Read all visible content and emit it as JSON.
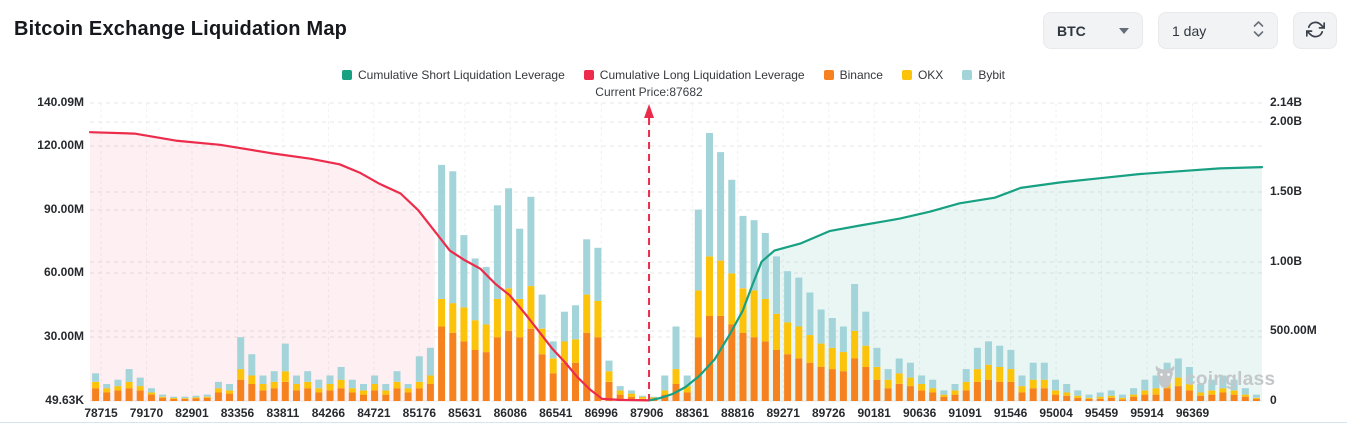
{
  "page": {
    "title": "Bitcoin Exchange Liquidation Map"
  },
  "controls": {
    "symbol": "BTC",
    "interval": "1 day",
    "refresh_icon": "refresh-icon",
    "symbol_caret_icon": "chevron-down-icon",
    "interval_spinner_icon": "up-down-chevrons-icon"
  },
  "legend": [
    {
      "label": "Cumulative Short Liquidation Leverage",
      "color": "#17a182"
    },
    {
      "label": "Cumulative Long Liquidation Leverage",
      "color": "#ec2c4a"
    },
    {
      "label": "Binance",
      "color": "#f6821f"
    },
    {
      "label": "OKX",
      "color": "#fcc30b"
    },
    {
      "label": "Bybit",
      "color": "#a2d4d9"
    }
  ],
  "annotations": {
    "current_price": "Current Price:87682"
  },
  "watermark": {
    "text": "coinglass"
  },
  "chart_data": {
    "type": "bar",
    "title": "Bitcoin Exchange Liquidation Map",
    "grid": true,
    "legend_position": "top",
    "x_tick_labels": [
      "78715",
      "79170",
      "82901",
      "83356",
      "83811",
      "84266",
      "84721",
      "85176",
      "85631",
      "86086",
      "86541",
      "86996",
      "87906",
      "88361",
      "88816",
      "89271",
      "89726",
      "90181",
      "90636",
      "91091",
      "91546",
      "95004",
      "95459",
      "95914",
      "96369"
    ],
    "left_axis": {
      "max_M": 140.09,
      "ticks": [
        {
          "label": "140.09M",
          "value_M": 140.09
        },
        {
          "label": "120.00M",
          "value_M": 120
        },
        {
          "label": "90.00M",
          "value_M": 90
        },
        {
          "label": "60.00M",
          "value_M": 60
        },
        {
          "label": "30.00M",
          "value_M": 30
        },
        {
          "label": "49.63K",
          "value_M": 0.04963
        }
      ]
    },
    "right_axis": {
      "max_B": 2.14,
      "ticks": [
        {
          "label": "2.14B",
          "value_B": 2.14
        },
        {
          "label": "2.00B",
          "value_B": 2.0
        },
        {
          "label": "1.50B",
          "value_B": 1.5
        },
        {
          "label": "1.00B",
          "value_B": 1.0
        },
        {
          "label": "500.00M",
          "value_B": 0.5
        },
        {
          "label": "0",
          "value_B": 0
        }
      ]
    },
    "bars": {
      "stack_order": [
        "Binance",
        "OKX",
        "Bybit"
      ],
      "colors": [
        "#f6821f",
        "#fcc30b",
        "#a2d4d9"
      ],
      "values_M": [
        [
          6,
          3,
          4
        ],
        [
          4,
          2,
          2
        ],
        [
          5,
          2,
          3
        ],
        [
          6,
          3,
          6
        ],
        [
          5,
          2,
          4
        ],
        [
          3,
          1,
          2
        ],
        [
          1.5,
          0.5,
          1
        ],
        [
          1,
          0.4,
          0.6
        ],
        [
          1,
          0.3,
          0.7
        ],
        [
          1.2,
          0.5,
          0.8
        ],
        [
          1.5,
          0.5,
          1
        ],
        [
          4,
          2,
          3
        ],
        [
          3.5,
          1.5,
          3
        ],
        [
          10,
          5,
          15
        ],
        [
          8,
          4,
          10
        ],
        [
          5,
          3,
          4
        ],
        [
          6,
          3,
          5
        ],
        [
          9,
          5,
          13
        ],
        [
          5,
          3,
          4
        ],
        [
          6,
          3,
          5
        ],
        [
          4,
          2,
          4
        ],
        [
          5,
          3,
          4
        ],
        [
          6,
          4,
          6
        ],
        [
          4,
          2,
          4
        ],
        [
          3,
          2,
          3
        ],
        [
          5,
          3,
          4
        ],
        [
          3,
          2,
          3
        ],
        [
          6,
          3,
          5
        ],
        [
          4,
          2,
          2
        ],
        [
          6,
          3,
          12
        ],
        [
          8,
          4,
          13
        ],
        [
          35,
          13,
          63
        ],
        [
          32,
          14,
          62
        ],
        [
          28,
          16,
          34
        ],
        [
          24,
          14,
          29
        ],
        [
          23,
          13,
          27
        ],
        [
          30,
          18,
          44
        ],
        [
          33,
          20,
          47
        ],
        [
          30,
          18,
          33
        ],
        [
          34,
          20,
          42
        ],
        [
          22,
          12,
          16
        ],
        [
          13,
          7,
          8
        ],
        [
          18,
          10,
          14
        ],
        [
          18,
          11,
          16
        ],
        [
          32,
          18,
          26
        ],
        [
          30,
          17,
          25
        ],
        [
          9,
          5,
          5
        ],
        [
          3,
          2,
          2
        ],
        [
          2,
          1.5,
          1.5
        ],
        [
          1,
          1,
          0.5
        ],
        [
          0.8,
          1,
          0.2
        ],
        [
          3,
          2,
          7
        ],
        [
          8,
          7,
          20
        ],
        [
          4,
          3,
          5
        ],
        [
          30,
          22,
          38
        ],
        [
          40,
          28,
          58
        ],
        [
          40,
          26,
          51
        ],
        [
          36,
          24,
          44
        ],
        [
          32,
          21,
          34
        ],
        [
          30,
          22,
          33
        ],
        [
          28,
          20,
          31
        ],
        [
          24,
          17,
          27
        ],
        [
          22,
          15,
          24
        ],
        [
          20,
          15,
          23
        ],
        [
          18,
          13,
          20
        ],
        [
          16,
          11,
          16
        ],
        [
          15,
          10,
          14
        ],
        [
          14,
          9,
          12
        ],
        [
          20,
          13,
          22
        ],
        [
          16,
          10,
          16
        ],
        [
          10,
          6,
          9
        ],
        [
          6,
          4,
          5
        ],
        [
          8,
          5,
          7
        ],
        [
          7,
          4,
          7
        ],
        [
          5,
          3,
          4
        ],
        [
          4,
          2,
          4
        ],
        [
          2,
          1,
          2
        ],
        [
          3,
          2,
          3
        ],
        [
          5,
          4,
          6
        ],
        [
          9,
          6,
          10
        ],
        [
          10,
          7,
          11
        ],
        [
          9,
          7,
          10
        ],
        [
          9,
          6,
          9
        ],
        [
          4,
          3,
          5
        ],
        [
          6,
          4,
          8
        ],
        [
          6,
          4,
          8
        ],
        [
          3,
          2,
          5
        ],
        [
          2.5,
          1.5,
          4
        ],
        [
          1.5,
          1,
          2.5
        ],
        [
          1,
          0.5,
          1.5
        ],
        [
          1,
          1,
          2
        ],
        [
          1.5,
          1,
          2.5
        ],
        [
          0.8,
          0.7,
          1.5
        ],
        [
          2,
          1,
          3
        ],
        [
          3,
          2,
          5
        ],
        [
          3,
          3,
          6
        ],
        [
          6,
          4,
          8
        ],
        [
          7,
          4,
          9
        ],
        [
          5,
          3,
          8
        ],
        [
          2.5,
          1.5,
          4
        ],
        [
          3,
          2,
          5
        ],
        [
          4,
          2,
          6
        ],
        [
          3,
          2,
          5
        ],
        [
          2,
          1,
          3
        ],
        [
          1,
          0.5,
          1.5
        ]
      ]
    },
    "lines": {
      "cumulative_long_B": [
        [
          0.0,
          1.93
        ],
        [
          0.038,
          1.92
        ],
        [
          0.073,
          1.87
        ],
        [
          0.111,
          1.84
        ],
        [
          0.154,
          1.78
        ],
        [
          0.188,
          1.74
        ],
        [
          0.213,
          1.7
        ],
        [
          0.23,
          1.64
        ],
        [
          0.247,
          1.56
        ],
        [
          0.265,
          1.49
        ],
        [
          0.28,
          1.37
        ],
        [
          0.294,
          1.22
        ],
        [
          0.307,
          1.08
        ],
        [
          0.32,
          1.01
        ],
        [
          0.333,
          0.95
        ],
        [
          0.346,
          0.84
        ],
        [
          0.358,
          0.76
        ],
        [
          0.371,
          0.63
        ],
        [
          0.384,
          0.49
        ],
        [
          0.394,
          0.38
        ],
        [
          0.405,
          0.28
        ],
        [
          0.416,
          0.17
        ],
        [
          0.427,
          0.08
        ],
        [
          0.437,
          0.015
        ],
        [
          0.452,
          0.008
        ],
        [
          0.477,
          0.004
        ]
      ],
      "cumulative_short_B": [
        [
          0.477,
          0.004
        ],
        [
          0.486,
          0.02
        ],
        [
          0.497,
          0.05
        ],
        [
          0.508,
          0.1
        ],
        [
          0.52,
          0.18
        ],
        [
          0.533,
          0.3
        ],
        [
          0.546,
          0.48
        ],
        [
          0.557,
          0.65
        ],
        [
          0.565,
          0.83
        ],
        [
          0.573,
          1.0
        ],
        [
          0.584,
          1.08
        ],
        [
          0.606,
          1.13
        ],
        [
          0.631,
          1.22
        ],
        [
          0.657,
          1.26
        ],
        [
          0.691,
          1.31
        ],
        [
          0.717,
          1.36
        ],
        [
          0.742,
          1.42
        ],
        [
          0.772,
          1.46
        ],
        [
          0.794,
          1.53
        ],
        [
          0.828,
          1.57
        ],
        [
          0.862,
          1.6
        ],
        [
          0.896,
          1.63
        ],
        [
          0.93,
          1.65
        ],
        [
          0.964,
          1.67
        ],
        [
          1.0,
          1.68
        ]
      ],
      "long_fill_end_frac": 0.294,
      "long_color": "#ec2c4a",
      "short_color": "#17a182",
      "long_fill": "rgba(240,55,85,0.08)",
      "short_fill": "rgba(24,160,130,0.09)"
    },
    "current_price": {
      "value": 87682,
      "x_frac": 0.477,
      "line_color": "#ea2c4b"
    }
  }
}
